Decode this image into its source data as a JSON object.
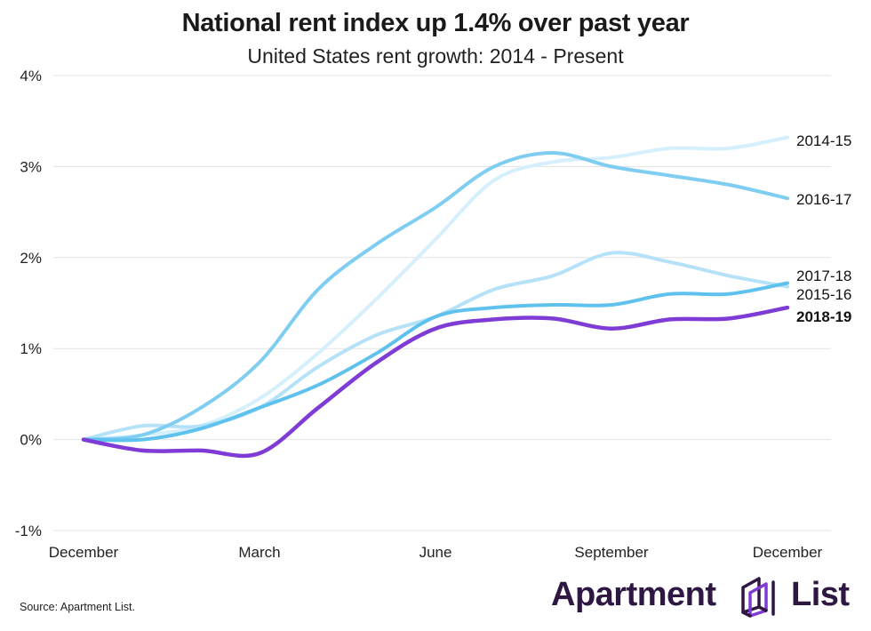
{
  "chart_data": {
    "type": "line",
    "title": "National rent index up 1.4% over past year",
    "subtitle": "United States rent growth: 2014 - Present",
    "x_tick_labels": [
      "December",
      "March",
      "June",
      "September",
      "December"
    ],
    "y_ticks": [
      "-1%",
      "0%",
      "1%",
      "2%",
      "3%",
      "4%"
    ],
    "ylim": [
      -1,
      4
    ],
    "x_months": 12,
    "grid": "horizontal",
    "series": [
      {
        "name": "2014-15",
        "color": "#d5f0fc",
        "x": [
          0,
          1,
          2,
          3,
          4,
          5,
          6,
          7,
          8,
          9,
          10,
          11,
          12
        ],
        "values": [
          0.0,
          0.05,
          0.15,
          0.45,
          0.95,
          1.55,
          2.2,
          2.85,
          3.05,
          3.1,
          3.2,
          3.2,
          3.32
        ]
      },
      {
        "name": "2015-16",
        "color": "#b5e2f8",
        "x": [
          0,
          1,
          2,
          3,
          4,
          5,
          6,
          7,
          8,
          9,
          10,
          11,
          12
        ],
        "values": [
          0.0,
          0.15,
          0.15,
          0.35,
          0.8,
          1.15,
          1.35,
          1.65,
          1.8,
          2.05,
          1.95,
          1.8,
          1.68
        ]
      },
      {
        "name": "2016-17",
        "color": "#7fcdf1",
        "x": [
          0,
          1,
          2,
          3,
          4,
          5,
          6,
          7,
          8,
          9,
          10,
          11,
          12
        ],
        "values": [
          0.0,
          0.05,
          0.35,
          0.85,
          1.65,
          2.15,
          2.55,
          3.0,
          3.15,
          3.0,
          2.9,
          2.8,
          2.65
        ]
      },
      {
        "name": "2017-18",
        "color": "#5fc2ee",
        "x": [
          0,
          1,
          2,
          3,
          4,
          5,
          6,
          7,
          8,
          9,
          10,
          11,
          12
        ],
        "values": [
          0.0,
          0.0,
          0.12,
          0.35,
          0.6,
          0.95,
          1.35,
          1.45,
          1.48,
          1.48,
          1.6,
          1.6,
          1.72
        ]
      },
      {
        "name": "2018-19",
        "color": "#7f3bd6",
        "bold": true,
        "x": [
          0,
          1,
          2,
          3,
          4,
          5,
          6,
          7,
          8,
          9,
          10,
          11,
          12
        ],
        "values": [
          0.0,
          -0.12,
          -0.12,
          -0.15,
          0.35,
          0.85,
          1.22,
          1.32,
          1.33,
          1.22,
          1.32,
          1.33,
          1.45
        ]
      }
    ]
  },
  "source": "Source: Apartment List.",
  "logo": {
    "word1": "Apartment",
    "word2": "List",
    "color": "#2e1743",
    "icon_color": "#7f3bd6"
  }
}
